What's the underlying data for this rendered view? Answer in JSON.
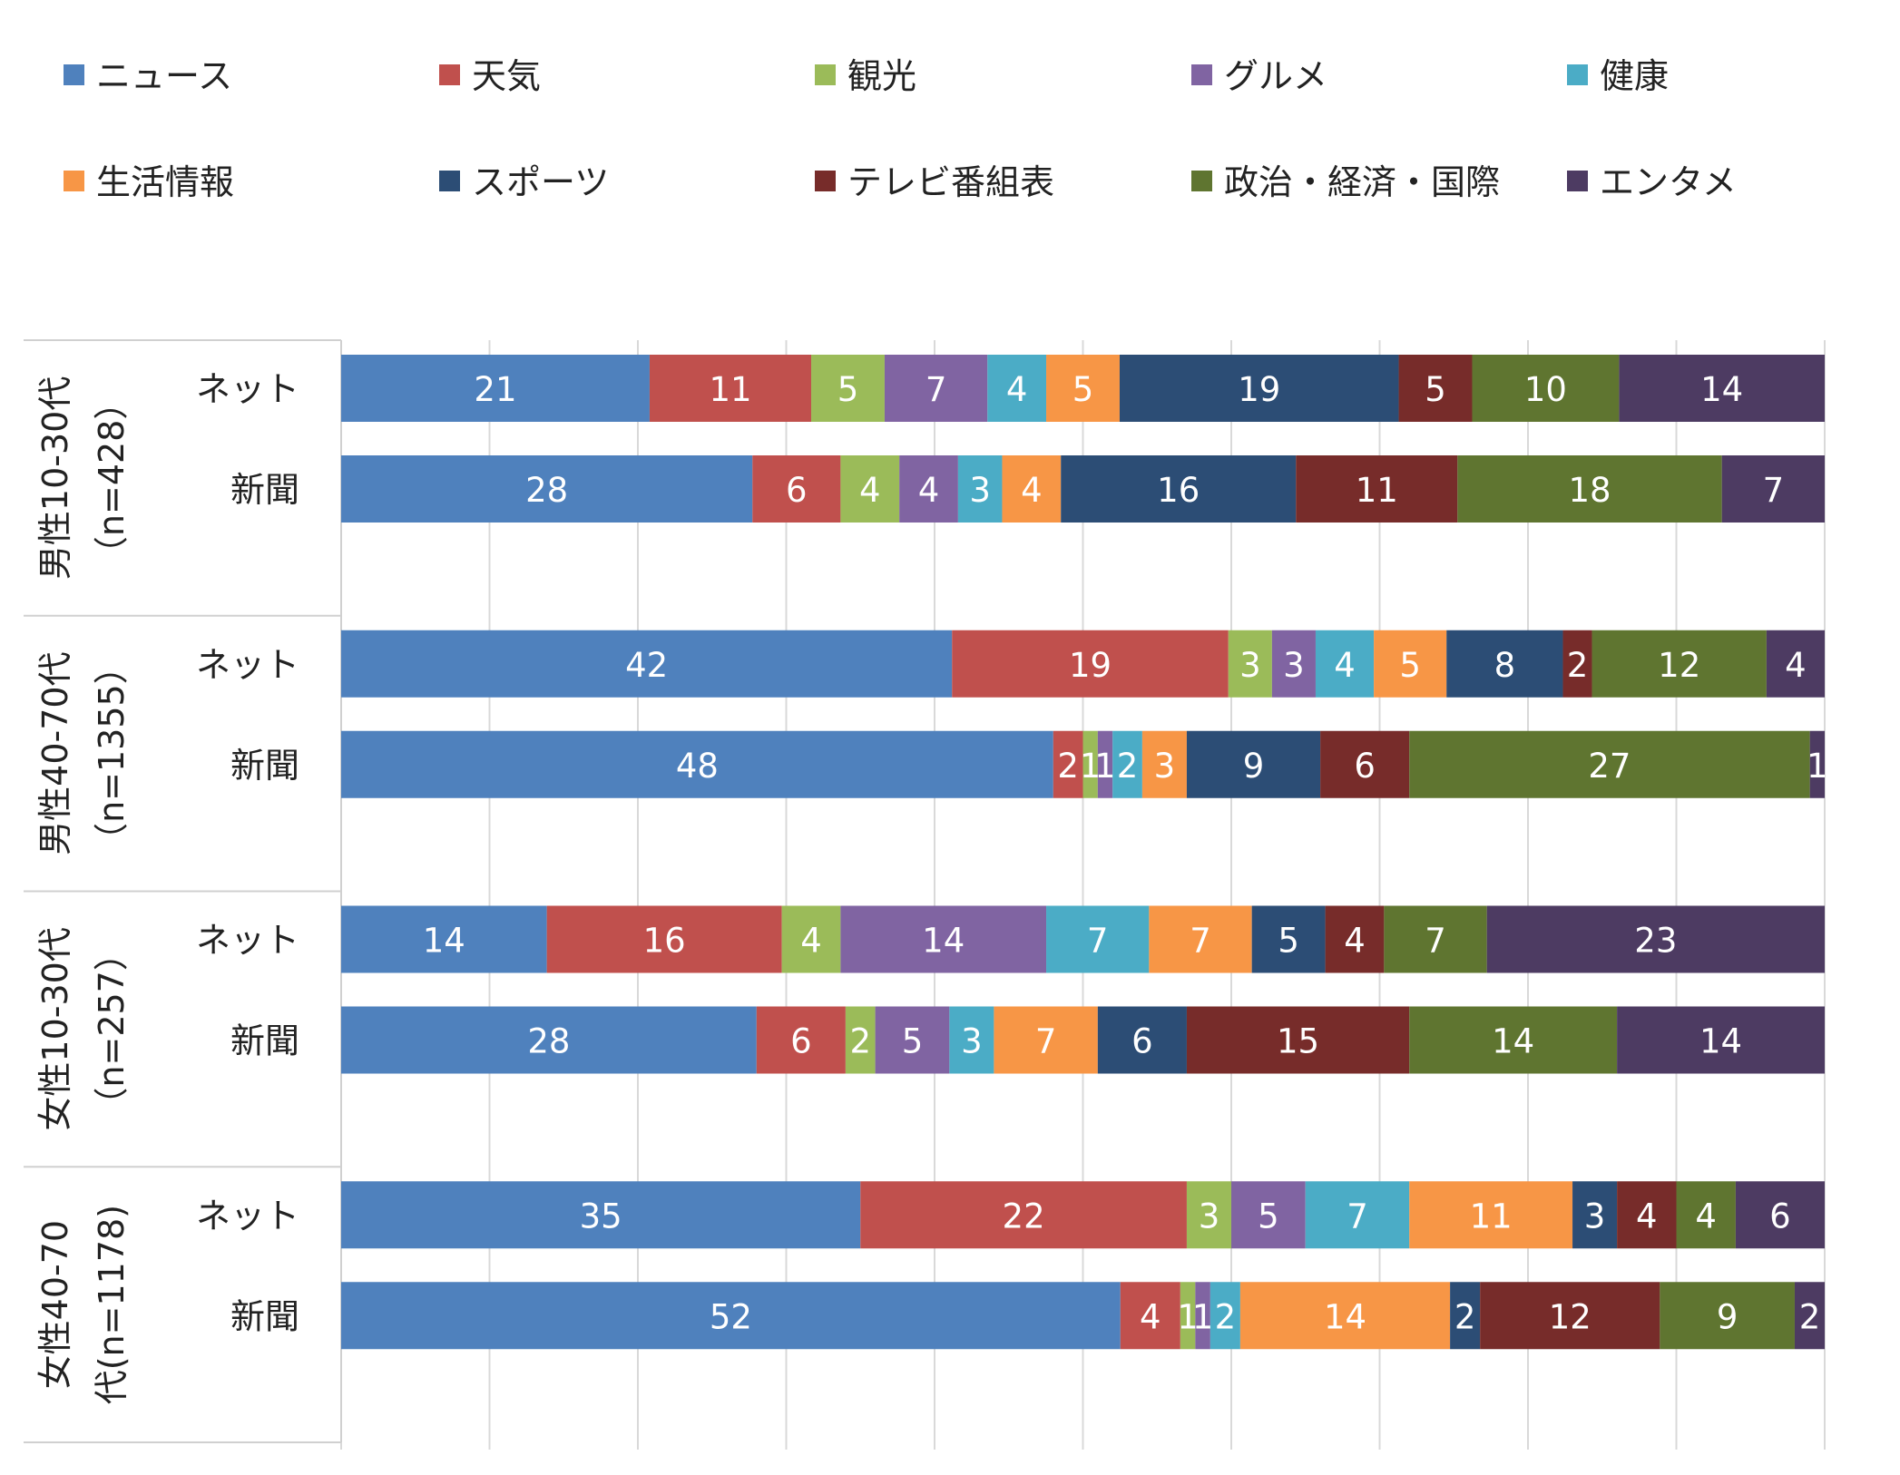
{
  "chart_data": {
    "type": "bar",
    "orientation": "horizontal",
    "stacked": true,
    "grid": true,
    "legend_position": "top",
    "series": [
      {
        "name": "ニュース",
        "color": "#4F81BD"
      },
      {
        "name": "天気",
        "color": "#C0504D"
      },
      {
        "name": "観光",
        "color": "#9BBB59"
      },
      {
        "name": "グルメ",
        "color": "#8064A2"
      },
      {
        "name": "健康",
        "color": "#4BACC6"
      },
      {
        "name": "生活情報",
        "color": "#F79646"
      },
      {
        "name": "スポーツ",
        "color": "#2C4D75"
      },
      {
        "name": "テレビ番組表",
        "color": "#772C2A"
      },
      {
        "name": "政治・経済・国際",
        "color": "#5F7530"
      },
      {
        "name": "エンタメ",
        "color": "#4D3B62"
      }
    ],
    "groups": [
      {
        "label": [
          "男性10-30代",
          "（n=428）"
        ],
        "rows": [
          {
            "label": "ネット",
            "values": [
              21,
              11,
              5,
              7,
              4,
              5,
              19,
              5,
              10,
              14
            ]
          },
          {
            "label": "新聞",
            "values": [
              28,
              6,
              4,
              4,
              3,
              4,
              16,
              11,
              18,
              7
            ]
          }
        ]
      },
      {
        "label": [
          "男性40-70代",
          "（n=1355）"
        ],
        "rows": [
          {
            "label": "ネット",
            "values": [
              42,
              19,
              3,
              3,
              4,
              5,
              8,
              2,
              12,
              4
            ]
          },
          {
            "label": "新聞",
            "values": [
              48,
              2,
              1,
              1,
              2,
              3,
              9,
              6,
              27,
              1
            ]
          }
        ]
      },
      {
        "label": [
          "女性10-30代",
          "（n=257）"
        ],
        "rows": [
          {
            "label": "ネット",
            "values": [
              14,
              16,
              4,
              14,
              7,
              7,
              5,
              4,
              7,
              23
            ]
          },
          {
            "label": "新聞",
            "values": [
              28,
              6,
              2,
              5,
              3,
              7,
              6,
              15,
              14,
              14
            ]
          }
        ]
      },
      {
        "label": [
          "女性40-70",
          "代(n=1178)"
        ],
        "rows": [
          {
            "label": "ネット",
            "values": [
              35,
              22,
              3,
              5,
              7,
              11,
              3,
              4,
              4,
              6
            ]
          },
          {
            "label": "新聞",
            "values": [
              52,
              4,
              1,
              1,
              2,
              14,
              2,
              12,
              9,
              2
            ]
          }
        ]
      }
    ]
  }
}
